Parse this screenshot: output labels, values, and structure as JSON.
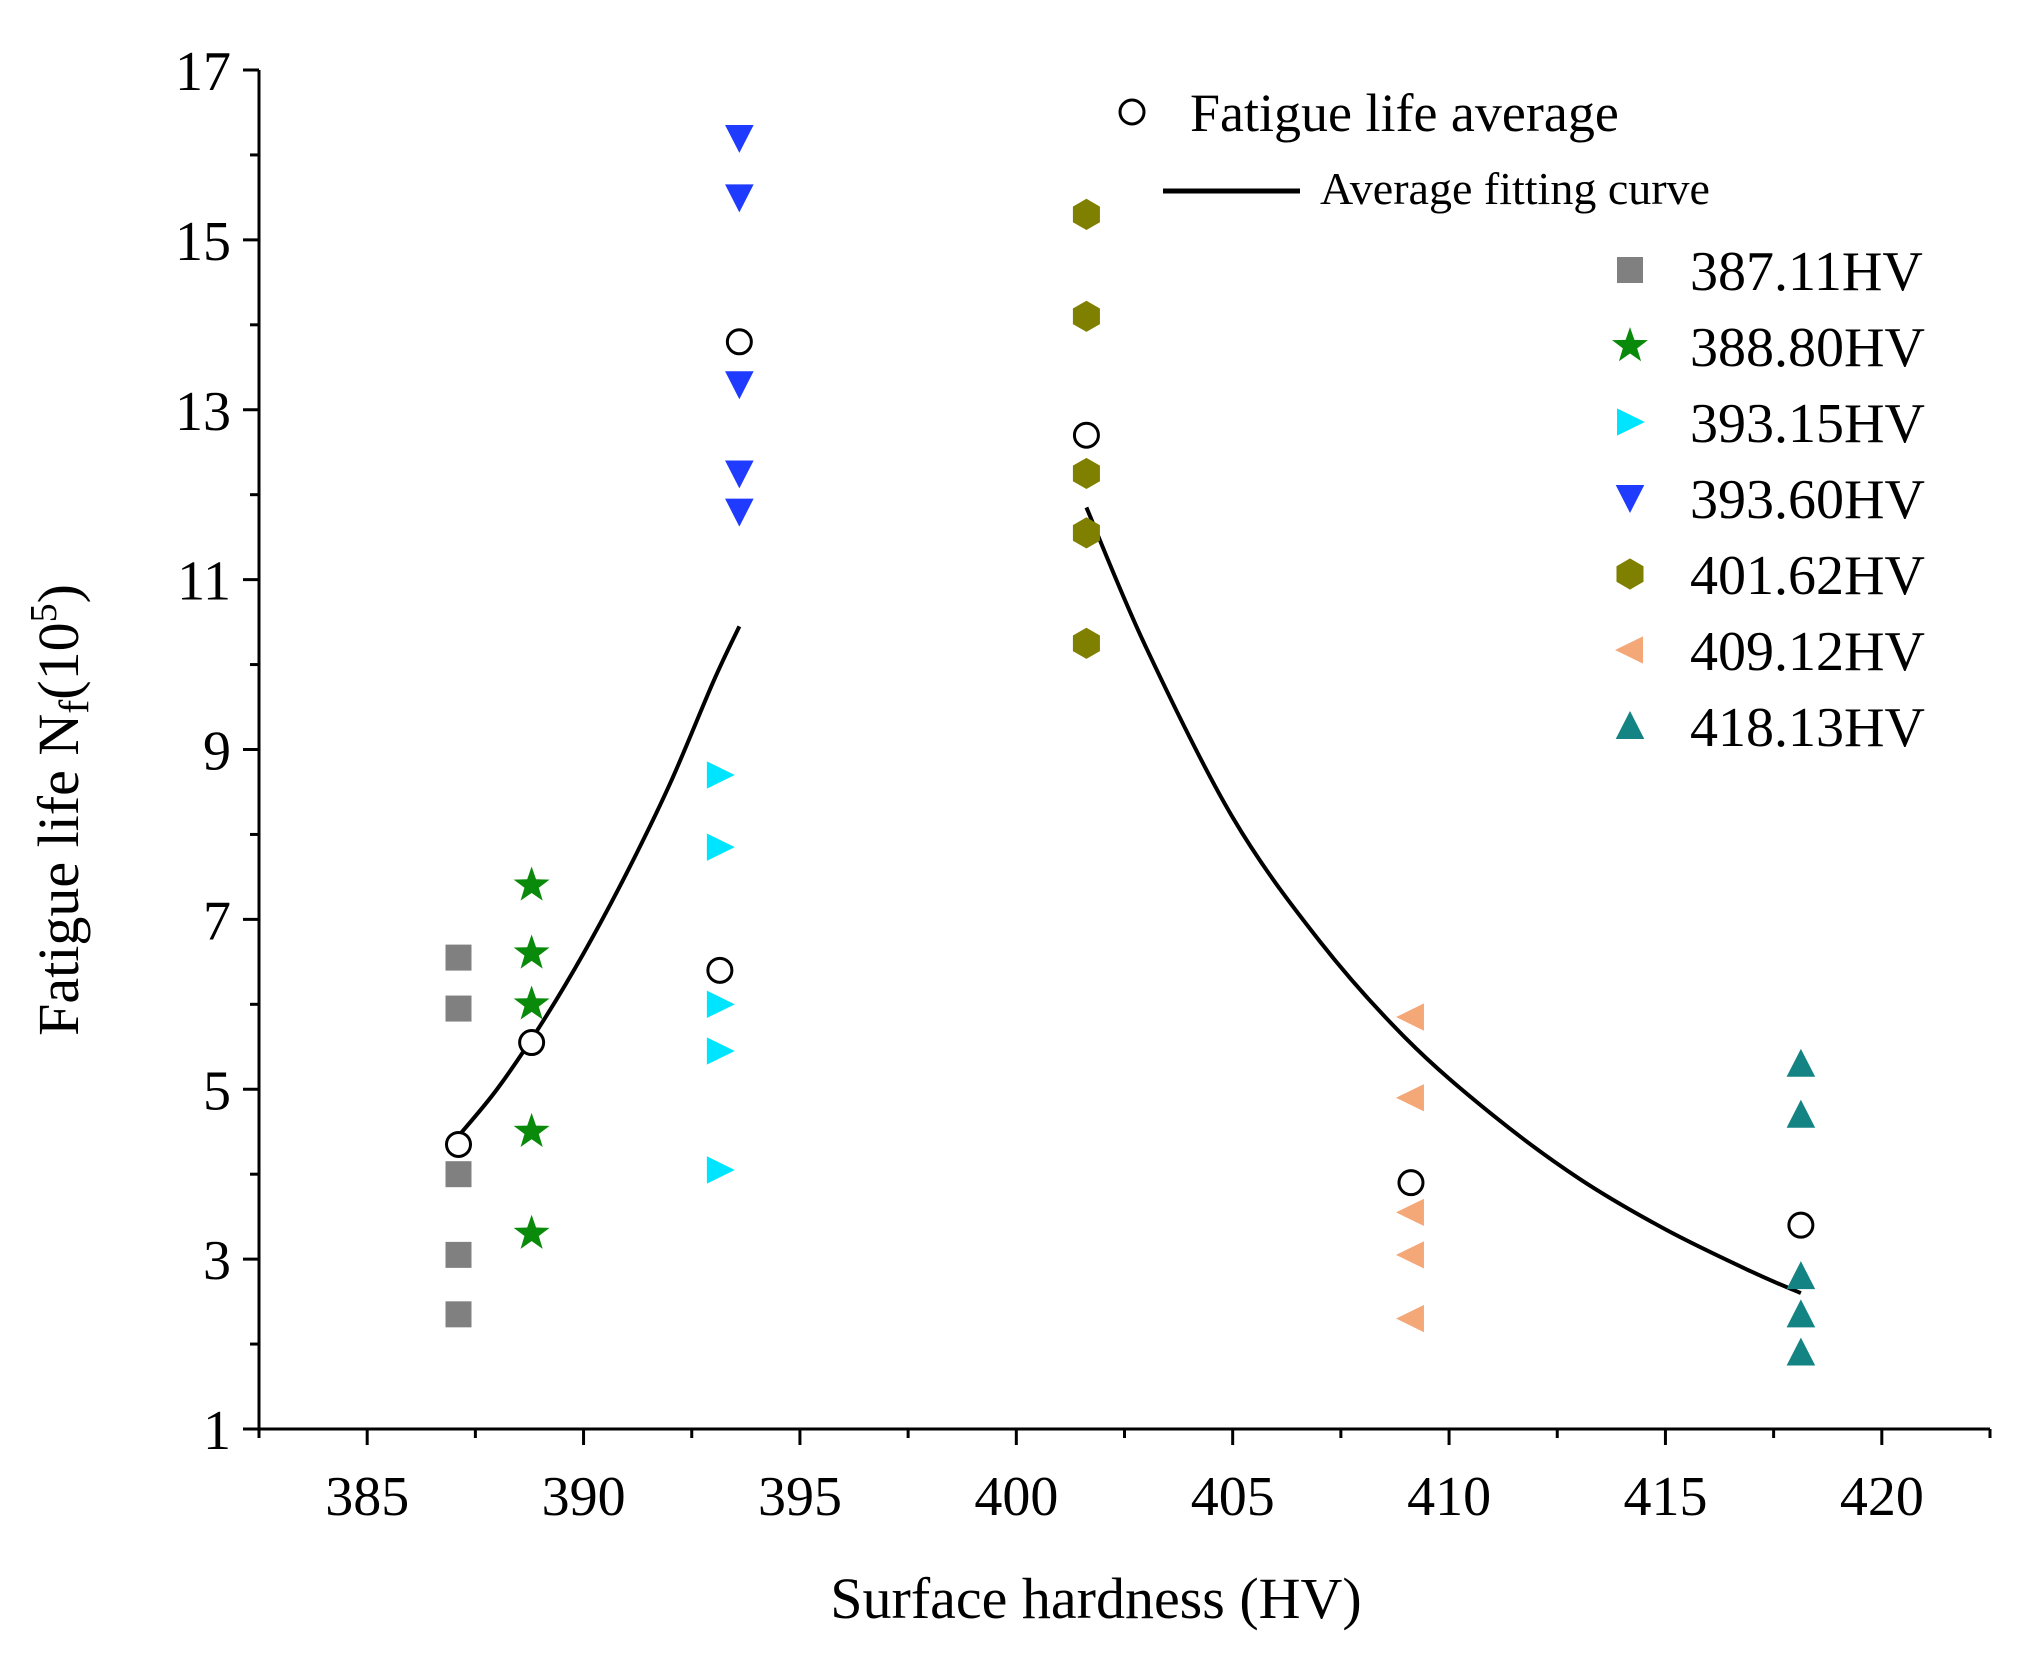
{
  "chart_data": {
    "type": "scatter",
    "title": "",
    "xlabel": "Surface hardness (HV)",
    "ylabel_main": "Fatigue life N",
    "ylabel_sub": "f",
    "ylabel_paren": "(10",
    "ylabel_sup": "5",
    "ylabel_close": ")",
    "xlim": [
      382.5,
      422.5
    ],
    "ylim": [
      1,
      17
    ],
    "xticks": [
      385,
      390,
      395,
      400,
      405,
      410,
      415,
      420
    ],
    "yticks": [
      1,
      3,
      5,
      7,
      9,
      11,
      13,
      15,
      17
    ],
    "grid": false,
    "legend_position": "top-right",
    "series": [
      {
        "name": "387.11HV",
        "marker": "square",
        "color": "#808080",
        "x": 387.11,
        "values": [
          6.55,
          5.95,
          4.0,
          3.05,
          2.35
        ]
      },
      {
        "name": "388.80HV",
        "marker": "star",
        "color": "#0a8a0a",
        "x": 388.8,
        "values": [
          7.4,
          6.6,
          6.0,
          4.5,
          3.3
        ]
      },
      {
        "name": "393.15HV",
        "marker": "triangle-right",
        "color": "#00e5ff",
        "x": 393.15,
        "values": [
          8.7,
          7.85,
          6.0,
          5.45,
          4.05
        ]
      },
      {
        "name": "393.60HV",
        "marker": "triangle-down",
        "color": "#1f3bff",
        "x": 393.6,
        "values": [
          16.2,
          15.5,
          13.3,
          12.25,
          11.8
        ]
      },
      {
        "name": "401.62HV",
        "marker": "hexagon",
        "color": "#7f7f00",
        "x": 401.62,
        "values": [
          15.3,
          14.1,
          12.25,
          11.55,
          10.25
        ]
      },
      {
        "name": "409.12HV",
        "marker": "triangle-left",
        "color": "#f4a777",
        "x": 409.12,
        "values": [
          5.85,
          4.9,
          3.55,
          3.05,
          2.3
        ]
      },
      {
        "name": "418.13HV",
        "marker": "triangle-up",
        "color": "#138383",
        "x": 418.13,
        "values": [
          5.3,
          4.7,
          2.8,
          2.35,
          1.9
        ]
      }
    ],
    "average": {
      "name": "Fatigue life average",
      "marker": "circle-open",
      "color": "#000000",
      "points": [
        [
          387.11,
          4.35
        ],
        [
          388.8,
          5.55
        ],
        [
          393.15,
          6.4
        ],
        [
          393.6,
          13.8
        ],
        [
          401.62,
          12.7
        ],
        [
          409.12,
          3.9
        ],
        [
          418.13,
          3.4
        ]
      ]
    },
    "fit_curves": {
      "name": "Average fitting curve",
      "color": "#000000",
      "segments": [
        [
          [
            387.11,
            4.45
          ],
          [
            388.0,
            5.0
          ],
          [
            389.0,
            5.75
          ],
          [
            390.0,
            6.6
          ],
          [
            391.0,
            7.55
          ],
          [
            392.0,
            8.6
          ],
          [
            393.0,
            9.8
          ],
          [
            393.6,
            10.45
          ]
        ],
        [
          [
            401.62,
            11.85
          ],
          [
            403.0,
            10.2
          ],
          [
            405.0,
            8.2
          ],
          [
            407.0,
            6.75
          ],
          [
            409.0,
            5.6
          ],
          [
            411.0,
            4.7
          ],
          [
            413.0,
            3.95
          ],
          [
            415.0,
            3.35
          ],
          [
            417.0,
            2.85
          ],
          [
            418.13,
            2.6
          ]
        ]
      ]
    }
  }
}
